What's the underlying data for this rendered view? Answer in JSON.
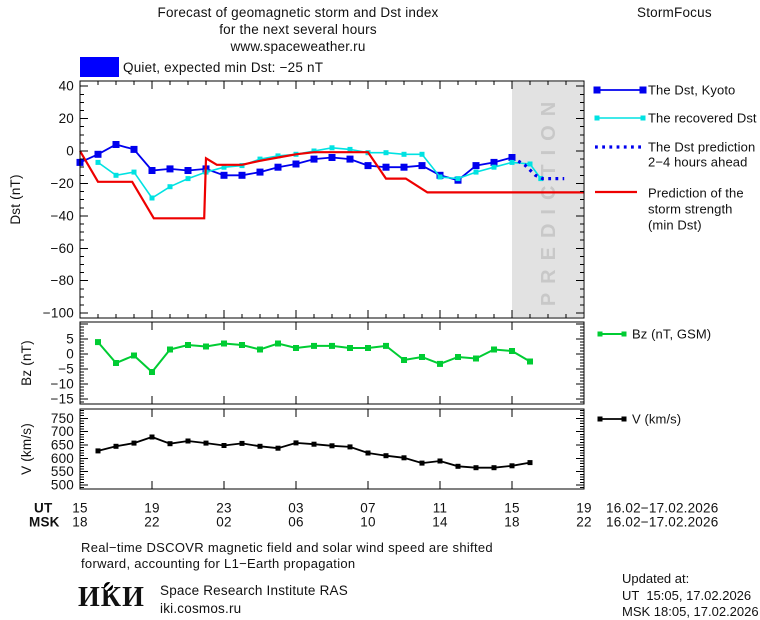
{
  "header": {
    "title_line1": "Forecast of geomagnetic storm and Dst index",
    "title_line2": "for the next several hours",
    "title_line3": "www.spaceweather.ru",
    "brand": "StormFocus"
  },
  "status": {
    "label": "Quiet, expected min Dst: −25 nT",
    "swatch_color": "#0000FF"
  },
  "legend": {
    "dst_kyoto": "The Dst, Kyoto",
    "recovered": "The recovered Dst",
    "prediction_line1": "The Dst prediction",
    "prediction_line2": "2−4 hours ahead",
    "storm_line1": "Prediction of the",
    "storm_line2": "storm strength",
    "storm_line3": "(min Dst)",
    "bz": "Bz (nT, GSM)",
    "v": "V (km/s)"
  },
  "footer": {
    "note_line1": "Real−time DSCOVR magnetic field and solar wind speed are shifted",
    "note_line2": "forward, accounting for L1−Earth propagation",
    "logo_text": "ИКИ",
    "institute": "Space Research Institute RAS",
    "site": "iki.cosmos.ru",
    "updated_label": "Updated at:",
    "updated_ut": "UT  15:05, 17.02.2026",
    "updated_msk": "MSK 18:05, 17.02.2026"
  },
  "chart_data": {
    "type": "line",
    "x": {
      "lim": [
        0,
        28
      ],
      "tick_t": [
        0,
        4,
        8,
        12,
        16,
        20,
        24,
        28
      ],
      "tick_hours_ut": [
        "15",
        "19",
        "23",
        "03",
        "07",
        "11",
        "15",
        "19"
      ],
      "tick_hours_msk": [
        "18",
        "22",
        "02",
        "06",
        "10",
        "14",
        "18",
        "22"
      ],
      "row_label_ut": "UT",
      "row_label_msk": "MSK",
      "date_ut": "16.02−17.02.2026",
      "date_msk": "16.02−17.02.2026"
    },
    "panels": [
      {
        "id": "dst",
        "ylabel": "Dst (nT)",
        "yticks": [
          40,
          20,
          0,
          -20,
          -40,
          -60,
          -80,
          -100
        ],
        "ylim": [
          -103,
          43.2
        ],
        "grid": false,
        "legend_position": "right",
        "prediction_band": {
          "from": 24,
          "to": 28,
          "label": "PREDICTION",
          "fill": "#E2E2E2"
        },
        "series": [
          {
            "name": "The Dst, Kyoto",
            "color": "#0000EE",
            "width": 1.8,
            "marker": 7,
            "points": [
              [
                0,
                -7
              ],
              [
                1,
                -2
              ],
              [
                2,
                4
              ],
              [
                3,
                1
              ],
              [
                4,
                -12
              ],
              [
                5,
                -11
              ],
              [
                6,
                -12
              ],
              [
                7,
                -11
              ],
              [
                8,
                -15
              ],
              [
                9,
                -15
              ],
              [
                10,
                -13
              ],
              [
                11,
                -10
              ],
              [
                12,
                -8
              ],
              [
                13,
                -5
              ],
              [
                14,
                -4
              ],
              [
                15,
                -5
              ],
              [
                16,
                -9
              ],
              [
                17,
                -10
              ],
              [
                18,
                -10
              ],
              [
                19,
                -9
              ],
              [
                20,
                -15
              ],
              [
                21,
                -18
              ],
              [
                22,
                -9
              ],
              [
                23,
                -7
              ],
              [
                24,
                -4
              ]
            ]
          },
          {
            "name": "The recovered Dst",
            "color": "#00E2E2",
            "width": 1.6,
            "marker": 5,
            "points": [
              [
                1,
                -7
              ],
              [
                2,
                -15
              ],
              [
                3,
                -13
              ],
              [
                4,
                -29
              ],
              [
                5,
                -22
              ],
              [
                6,
                -17
              ],
              [
                7,
                -13
              ],
              [
                8,
                -10
              ],
              [
                9,
                -9
              ],
              [
                10,
                -5
              ],
              [
                11,
                -3
              ],
              [
                12,
                -2
              ],
              [
                13,
                0
              ],
              [
                14,
                2
              ],
              [
                15,
                1
              ],
              [
                16,
                -1
              ],
              [
                17,
                -1
              ],
              [
                18,
                -2
              ],
              [
                19,
                -2
              ],
              [
                20,
                -16
              ],
              [
                21,
                -17
              ],
              [
                22,
                -13
              ],
              [
                23,
                -10
              ],
              [
                24,
                -7
              ],
              [
                25,
                -8
              ],
              [
                25.6,
                -17
              ]
            ]
          },
          {
            "name": "The Dst prediction 2−4 hours ahead",
            "color": "#0000EE",
            "width": 3.2,
            "marker": 0,
            "dash": "2.8 4.4",
            "points": [
              [
                24,
                -4
              ],
              [
                24.7,
                -8.5
              ],
              [
                25.3,
                -15
              ],
              [
                25.7,
                -17
              ],
              [
                26.9,
                -17
              ]
            ]
          },
          {
            "name": "Prediction of the storm strength (min Dst)",
            "color": "#EE0000",
            "width": 2.2,
            "marker": 0,
            "points": [
              [
                0,
                0
              ],
              [
                1,
                -19
              ],
              [
                2.9,
                -19
              ],
              [
                4.1,
                -41.5
              ],
              [
                6.9,
                -41.5
              ],
              [
                7,
                -4.5
              ],
              [
                7.6,
                -8.5
              ],
              [
                9,
                -8.5
              ],
              [
                10,
                -6
              ],
              [
                11,
                -4
              ],
              [
                12,
                -2
              ],
              [
                13,
                -0.7
              ],
              [
                16,
                -0.7
              ],
              [
                17,
                -17
              ],
              [
                18.1,
                -17
              ],
              [
                19.3,
                -25.5
              ],
              [
                28,
                -25.5
              ]
            ]
          }
        ]
      },
      {
        "id": "bz",
        "ylabel": "Bz (nT)",
        "yticks": [
          5,
          0,
          -5,
          -10,
          -15
        ],
        "ylim": [
          -16.7,
          10.7
        ],
        "grid": false,
        "series": [
          {
            "name": "Bz (nT, GSM)",
            "color": "#00CC33",
            "width": 2,
            "marker": 6,
            "points": [
              [
                1,
                4
              ],
              [
                2,
                -3
              ],
              [
                3,
                -0.5
              ],
              [
                4,
                -6
              ],
              [
                5,
                1.5
              ],
              [
                6,
                3
              ],
              [
                7,
                2.5
              ],
              [
                8,
                3.5
              ],
              [
                9,
                3
              ],
              [
                10,
                1.5
              ],
              [
                11,
                3.5
              ],
              [
                12,
                2
              ],
              [
                13,
                2.7
              ],
              [
                14,
                2.7
              ],
              [
                15,
                2
              ],
              [
                16,
                2
              ],
              [
                17,
                2.7
              ],
              [
                18,
                -2
              ],
              [
                19,
                -1
              ],
              [
                20,
                -3.3
              ],
              [
                21,
                -1
              ],
              [
                22,
                -1.5
              ],
              [
                23,
                1.5
              ],
              [
                24,
                1
              ],
              [
                25,
                -2.5
              ]
            ]
          }
        ]
      },
      {
        "id": "v",
        "ylabel": "V (km/s)",
        "yticks": [
          750,
          700,
          650,
          600,
          550,
          500
        ],
        "ylim": [
          485,
          785
        ],
        "grid": false,
        "series": [
          {
            "name": "V (km/s)",
            "color": "#000000",
            "width": 1.8,
            "marker": 5,
            "points": [
              [
                1,
                628
              ],
              [
                2,
                645
              ],
              [
                3,
                657
              ],
              [
                4,
                680
              ],
              [
                5,
                655
              ],
              [
                6,
                665
              ],
              [
                7,
                657
              ],
              [
                8,
                648
              ],
              [
                9,
                656
              ],
              [
                10,
                645
              ],
              [
                11,
                638
              ],
              [
                12,
                658
              ],
              [
                13,
                653
              ],
              [
                14,
                647
              ],
              [
                15,
                643
              ],
              [
                16,
                620
              ],
              [
                17,
                610
              ],
              [
                18,
                602
              ],
              [
                19,
                582
              ],
              [
                20,
                590
              ],
              [
                21,
                570
              ],
              [
                22,
                565
              ],
              [
                23,
                565
              ],
              [
                24,
                572
              ],
              [
                25,
                584
              ]
            ]
          }
        ]
      }
    ]
  }
}
